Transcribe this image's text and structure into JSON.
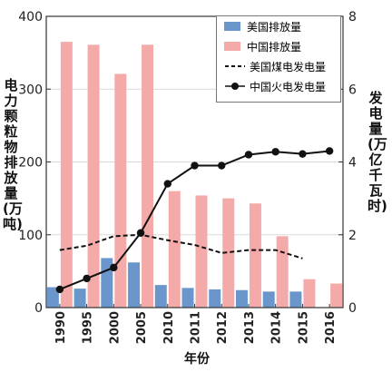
{
  "chart_data": {
    "type": "bar",
    "categories": [
      "1990",
      "1995",
      "2000",
      "2005",
      "2010",
      "2011",
      "2012",
      "2013",
      "2014",
      "2015",
      "2016"
    ],
    "xlabel": "年份",
    "ylabel_left": "电力颗粒物排放量(万吨)",
    "ylabel_right": "发电量(万亿千瓦时)",
    "ylim_left": [
      0,
      400
    ],
    "ylim_right": [
      0,
      8
    ],
    "yticks_left": [
      "0",
      "100",
      "200",
      "300",
      "400"
    ],
    "yticks_right": [
      "0",
      "2",
      "4",
      "6",
      "8"
    ],
    "series": [
      {
        "name": "美国排放量",
        "kind": "bar",
        "axis": "left",
        "color": "#6b96cc",
        "values": [
          28,
          26,
          68,
          62,
          31,
          27,
          25,
          24,
          22,
          22,
          null
        ]
      },
      {
        "name": "中国排放量",
        "kind": "bar",
        "axis": "left",
        "color": "#f4aaa9",
        "values": [
          365,
          361,
          321,
          361,
          160,
          154,
          150,
          143,
          98,
          39,
          33
        ]
      },
      {
        "name": "美国煤电发电量",
        "kind": "line-dashed",
        "axis": "right",
        "color": "#111111",
        "values": [
          1.58,
          1.7,
          1.96,
          2.0,
          1.85,
          1.72,
          1.5,
          1.58,
          1.58,
          1.35,
          null
        ]
      },
      {
        "name": "中国火电发电量",
        "kind": "line-marker",
        "axis": "right",
        "color": "#111111",
        "values": [
          0.5,
          0.8,
          1.1,
          2.05,
          3.4,
          3.9,
          3.9,
          4.2,
          4.28,
          4.22,
          4.3
        ]
      }
    ],
    "legend_position": "top-right"
  }
}
